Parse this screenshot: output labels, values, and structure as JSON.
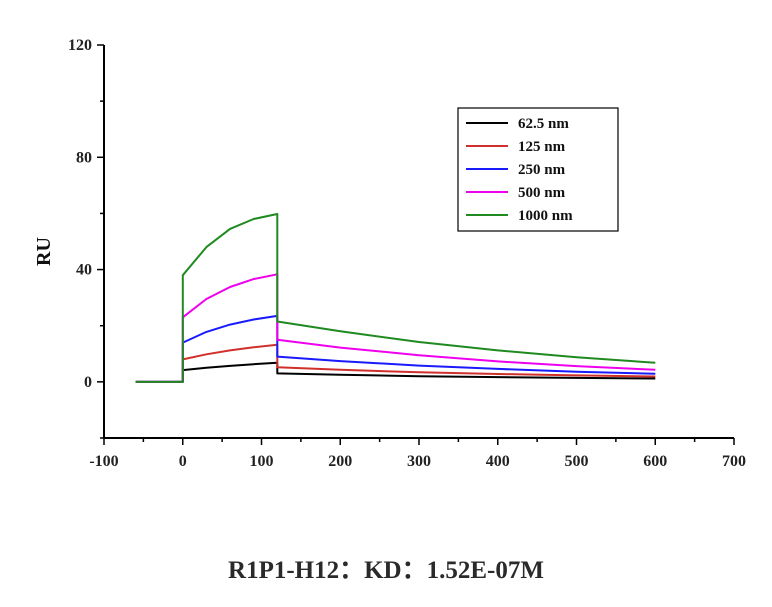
{
  "caption": "R1P1-H12：KD：1.52E-07M",
  "chart_data": {
    "type": "line",
    "xlabel": "",
    "ylabel": "RU",
    "xlim": [
      -100,
      700
    ],
    "ylim": [
      -20,
      120
    ],
    "xticks": [
      -100,
      0,
      100,
      200,
      300,
      400,
      500,
      600,
      700
    ],
    "yticks": [
      0,
      40,
      80,
      120
    ],
    "grid": false,
    "legend_position": "top-right",
    "series": [
      {
        "name": "62.5 nm",
        "color": "#000000",
        "x": [
          -60,
          0,
          0,
          30,
          60,
          90,
          120,
          120,
          200,
          300,
          400,
          500,
          600
        ],
        "y": [
          0,
          0,
          4.2,
          5.0,
          5.7,
          6.3,
          6.8,
          3.0,
          2.5,
          2.0,
          1.7,
          1.4,
          1.2
        ]
      },
      {
        "name": "125 nm",
        "color": "#d0302c",
        "x": [
          -60,
          0,
          0,
          30,
          60,
          90,
          120,
          120,
          200,
          300,
          400,
          500,
          600
        ],
        "y": [
          0,
          0,
          8.0,
          9.8,
          11.2,
          12.3,
          13.2,
          5.2,
          4.3,
          3.4,
          2.8,
          2.3,
          1.9
        ]
      },
      {
        "name": "250 nm",
        "color": "#1a1aff",
        "x": [
          -60,
          0,
          0,
          30,
          60,
          90,
          120,
          120,
          200,
          300,
          400,
          500,
          600
        ],
        "y": [
          0,
          0,
          14.0,
          17.8,
          20.4,
          22.2,
          23.5,
          9.0,
          7.4,
          5.8,
          4.6,
          3.6,
          2.9
        ]
      },
      {
        "name": "500 nm",
        "color": "#ee00ee",
        "x": [
          -60,
          0,
          0,
          30,
          60,
          90,
          120,
          120,
          200,
          300,
          400,
          500,
          600
        ],
        "y": [
          0,
          0,
          23.0,
          29.5,
          33.8,
          36.6,
          38.3,
          15.0,
          12.2,
          9.5,
          7.3,
          5.6,
          4.3
        ]
      },
      {
        "name": "1000 nm",
        "color": "#1f8a1f",
        "x": [
          -60,
          0,
          0,
          30,
          60,
          90,
          120,
          120,
          200,
          300,
          400,
          500,
          600
        ],
        "y": [
          0,
          0,
          38.0,
          48.0,
          54.5,
          58.0,
          59.8,
          21.5,
          18.0,
          14.2,
          11.2,
          8.8,
          6.8
        ]
      }
    ]
  }
}
